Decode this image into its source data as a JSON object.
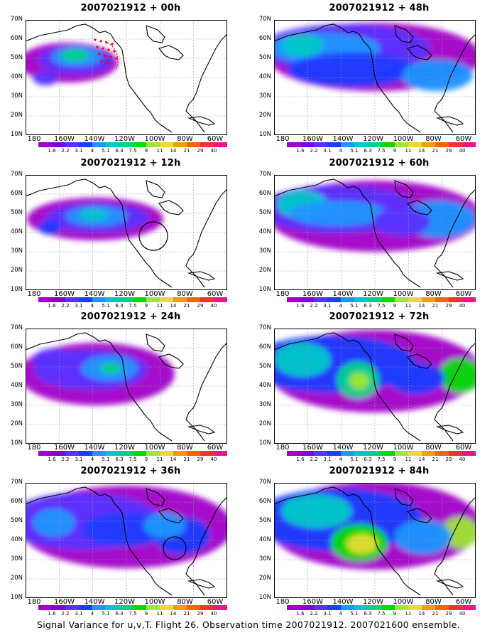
{
  "caption": "Signal Variance for u,v,T. Flight 26. Observation time 2007021912. 2007021600 ensemble.",
  "x_ticks": [
    "180",
    "160W",
    "140W",
    "120W",
    "100W",
    "80W",
    "60W"
  ],
  "y_ticks": [
    "70N",
    "60N",
    "50N",
    "40N",
    "30N",
    "20N",
    "10N"
  ],
  "colorbar": {
    "labels": [
      "1.6",
      "2.2",
      "3.1",
      "4",
      "5.1",
      "6.3",
      "7.5",
      "9",
      "11",
      "14",
      "21",
      "29",
      "40"
    ],
    "colors": [
      "#a000c8",
      "#8200dc",
      "#5a32ff",
      "#1e3cff",
      "#1e96ff",
      "#00c8c8",
      "#00d28c",
      "#00dc00",
      "#a0e632",
      "#e6dc32",
      "#f0a000",
      "#fa6400",
      "#f03232",
      "#f0148c"
    ]
  },
  "panels": [
    {
      "title": "2007021912 + 00h",
      "observation_marker": "red-dots"
    },
    {
      "title": "2007021912 + 48h"
    },
    {
      "title": "2007021912 + 12h",
      "observation_marker": "circle"
    },
    {
      "title": "2007021912 + 60h"
    },
    {
      "title": "2007021912 + 24h"
    },
    {
      "title": "2007021912 + 72h"
    },
    {
      "title": "2007021912 + 36h",
      "observation_marker": "circle"
    },
    {
      "title": "2007021912 + 84h"
    }
  ]
}
